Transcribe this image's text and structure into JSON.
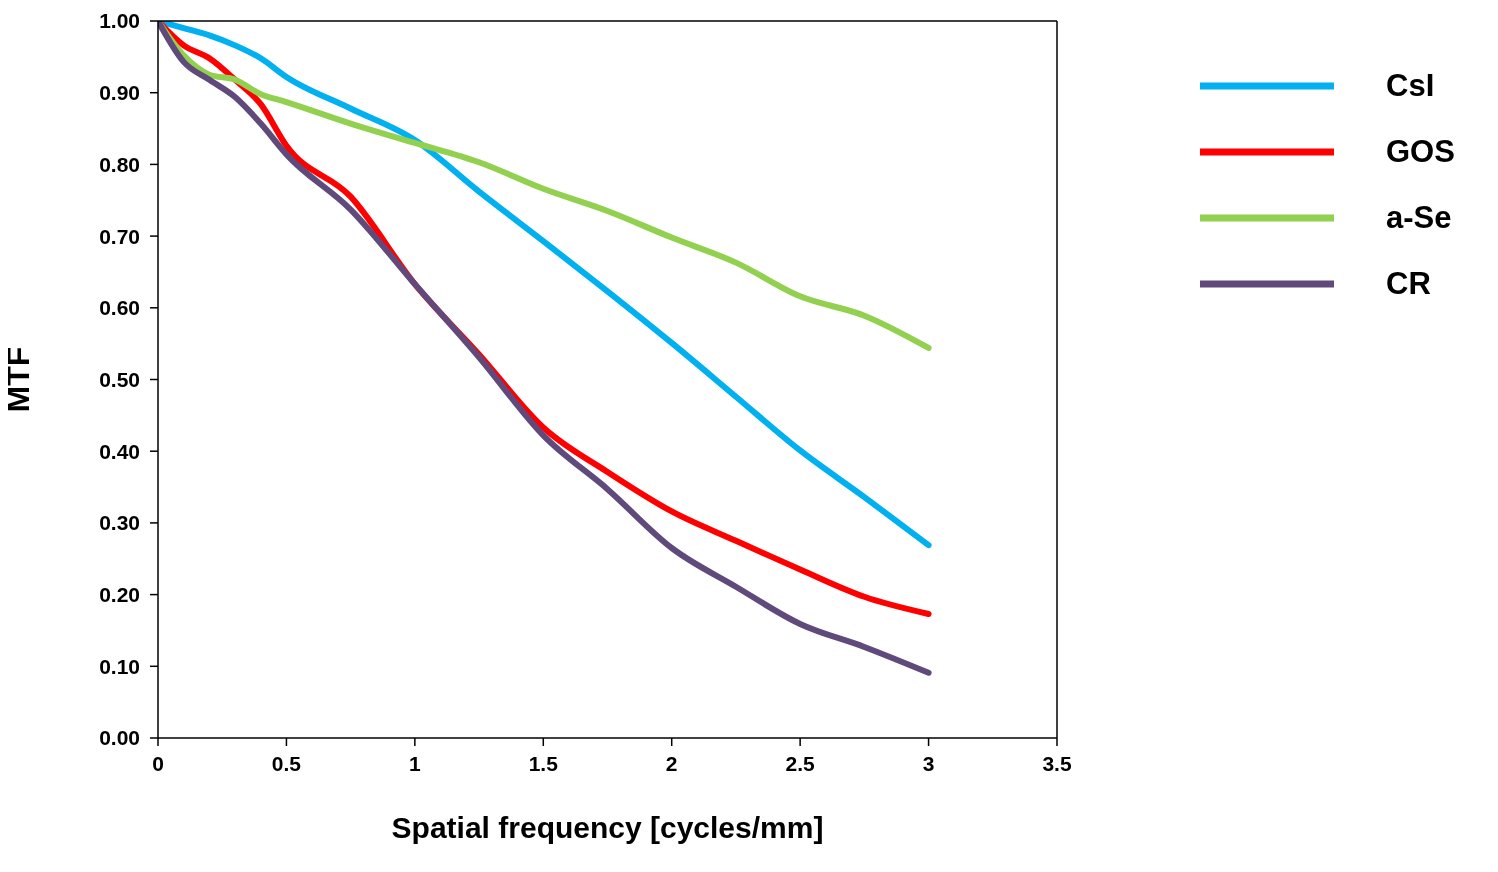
{
  "chart_data": {
    "type": "line",
    "xlabel": "Spatial frequency [cycles/mm]",
    "ylabel": "MTF",
    "x": [
      0,
      0.1,
      0.2,
      0.3,
      0.4,
      0.5,
      0.75,
      1,
      1.25,
      1.5,
      1.75,
      2,
      2.25,
      2.5,
      2.75,
      3
    ],
    "series": [
      {
        "name": "CsI",
        "color": "#00b0f0",
        "values": [
          1.0,
          0.99,
          0.98,
          0.966,
          0.948,
          0.922,
          0.878,
          0.834,
          0.762,
          0.693,
          0.623,
          0.551,
          0.476,
          0.401,
          0.336,
          0.269
        ]
      },
      {
        "name": "GOS",
        "color": "#ff0000",
        "values": [
          1.0,
          0.966,
          0.948,
          0.918,
          0.884,
          0.826,
          0.755,
          0.633,
          0.535,
          0.433,
          0.371,
          0.316,
          0.275,
          0.235,
          0.197,
          0.173
        ]
      },
      {
        "name": "a-Se",
        "color": "#92d050",
        "values": [
          1.0,
          0.952,
          0.925,
          0.918,
          0.898,
          0.887,
          0.857,
          0.83,
          0.803,
          0.766,
          0.735,
          0.698,
          0.663,
          0.616,
          0.589,
          0.544
        ]
      },
      {
        "name": "CR",
        "color": "#604a7b",
        "values": [
          1.0,
          0.943,
          0.918,
          0.894,
          0.857,
          0.814,
          0.737,
          0.633,
          0.531,
          0.422,
          0.347,
          0.265,
          0.211,
          0.159,
          0.127,
          0.091
        ]
      }
    ],
    "xlim": [
      0,
      3.5
    ],
    "xticks": [
      0,
      0.5,
      1,
      1.5,
      2,
      2.5,
      3,
      3.5
    ],
    "ylim": [
      0,
      1
    ],
    "yticks": [
      {
        "value": 0,
        "label": "0.00"
      },
      {
        "value": 0.1,
        "label": "0.10"
      },
      {
        "value": 0.2,
        "label": "0.20"
      },
      {
        "value": 0.3,
        "label": "0.30"
      },
      {
        "value": 0.4,
        "label": "0.40"
      },
      {
        "value": 0.5,
        "label": "0.50"
      },
      {
        "value": 0.6,
        "label": "0.60"
      },
      {
        "value": 0.7,
        "label": "0.70"
      },
      {
        "value": 0.8,
        "label": "0.80"
      },
      {
        "value": 0.9,
        "label": "0.90"
      },
      {
        "value": 1,
        "label": "1.00"
      }
    ],
    "grid": false,
    "legend": "top right",
    "marker": "none",
    "line_style": "solid"
  }
}
